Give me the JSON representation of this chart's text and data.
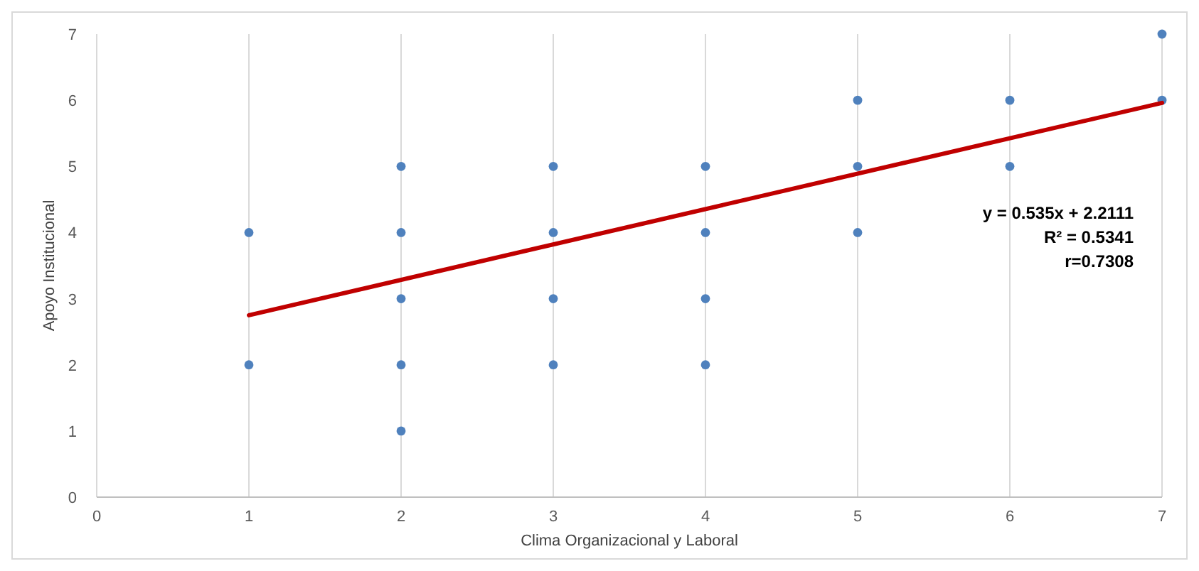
{
  "chart_data": {
    "type": "scatter",
    "xlabel": "Clima Organizacional y Laboral",
    "ylabel": "Apoyo Institucional",
    "xlim": [
      0,
      7
    ],
    "ylim": [
      0,
      7
    ],
    "xticks": [
      0,
      1,
      2,
      3,
      4,
      5,
      6,
      7
    ],
    "yticks": [
      0,
      1,
      2,
      3,
      4,
      5,
      6,
      7
    ],
    "grid": "x",
    "series": [
      {
        "marker": "circle",
        "color": "#4f81bd",
        "x": [
          1,
          1,
          2,
          2,
          2,
          2,
          2,
          3,
          3,
          3,
          3,
          4,
          4,
          4,
          4,
          5,
          5,
          5,
          6,
          6,
          7,
          7
        ],
        "values": [
          4,
          2,
          5,
          4,
          3,
          2,
          1,
          5,
          4,
          3,
          2,
          5,
          4,
          3,
          2,
          6,
          5,
          4,
          6,
          5,
          7,
          6
        ]
      },
      {
        "type": "line",
        "color": "#c00000",
        "x": [
          1,
          7
        ],
        "values": [
          2.75,
          5.96
        ]
      }
    ],
    "annotations": [
      "y = 0.535x + 2.2111",
      "R² = 0.5341",
      "r=0.7308"
    ]
  }
}
